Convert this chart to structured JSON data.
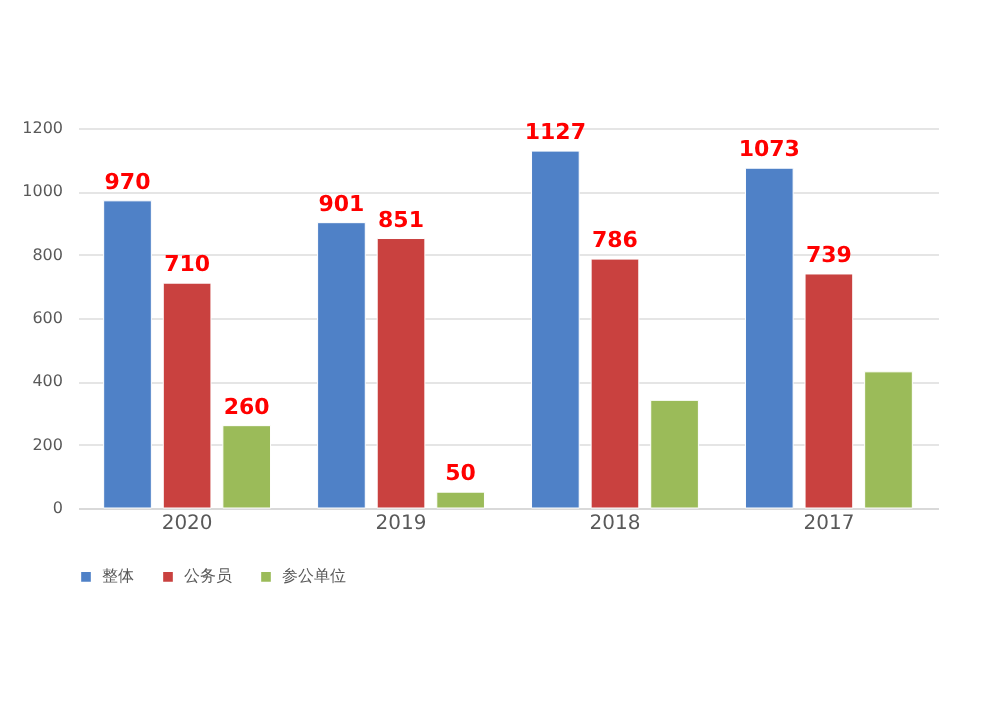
{
  "chart_data": {
    "type": "bar",
    "categories": [
      "2020",
      "2019",
      "2018",
      "2017"
    ],
    "series": [
      {
        "name": "整体",
        "color": "#4f81c7",
        "values": [
          970,
          901,
          1127,
          1073
        ],
        "value_labels": [
          "970",
          "901",
          "1127",
          "1073"
        ]
      },
      {
        "name": "公务员",
        "color": "#c9413f",
        "values": [
          710,
          851,
          786,
          739
        ],
        "value_labels": [
          "710",
          "851",
          "786",
          "739"
        ]
      },
      {
        "name": "参公单位",
        "color": "#9bbb59",
        "values": [
          260,
          50,
          340,
          430
        ],
        "value_labels": [
          "260",
          "50",
          null,
          null
        ]
      }
    ],
    "ylim": [
      0,
      1200
    ],
    "yticks": [
      0,
      200,
      400,
      600,
      800,
      1000,
      1200
    ],
    "grid": "y",
    "legend": "bottom"
  }
}
